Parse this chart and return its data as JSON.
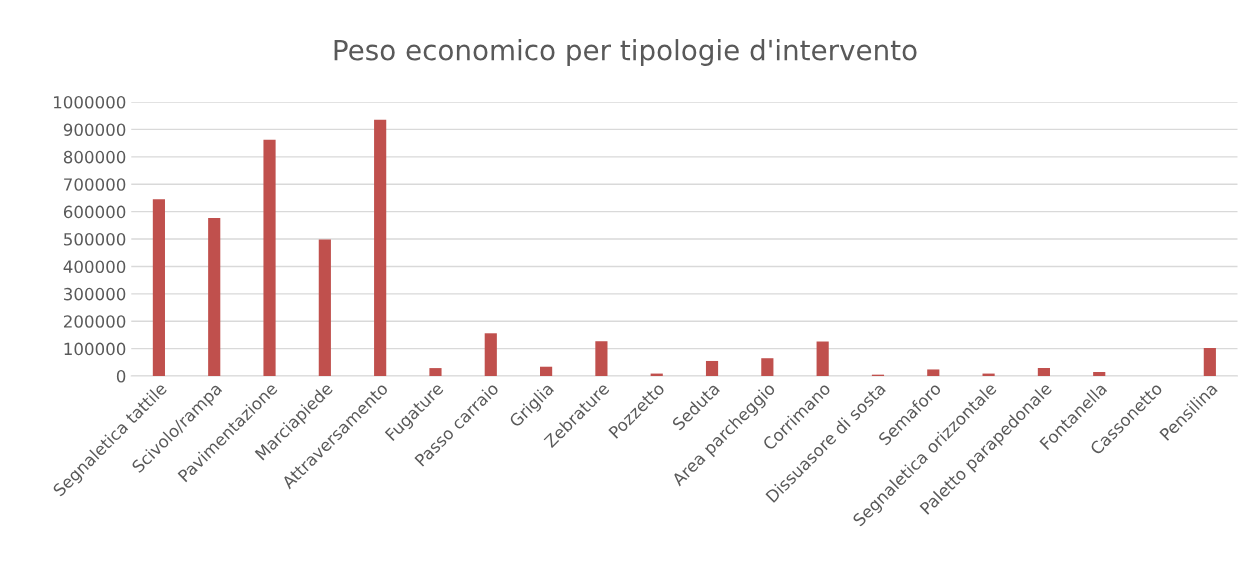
{
  "chart_data": {
    "type": "bar",
    "title": "Peso economico per tipologie d'intervento",
    "categories": [
      "Segnaletica tattile",
      "Scivolo/rampa",
      "Pavimentazione",
      "Marciapiede",
      "Attraversamento",
      "Fugature",
      "Passo carraio",
      "Griglia",
      "Zebrature",
      "Pozzetto",
      "Seduta",
      "Area parcheggio",
      "Corrimano",
      "Dissuasore di sosta",
      "Semaforo",
      "Segnaletica orizzontale",
      "Paletto parapedonale",
      "Fontanella",
      "Cassonetto",
      "Pensilina"
    ],
    "values": [
      645000,
      577000,
      862000,
      498000,
      935000,
      29000,
      156000,
      34000,
      127000,
      9000,
      55000,
      65000,
      126000,
      5000,
      24000,
      9000,
      29000,
      15000,
      0,
      102000
    ],
    "color": "#c0504d",
    "ylim": [
      0,
      1000000
    ],
    "yticks": [
      0,
      100000,
      200000,
      300000,
      400000,
      500000,
      600000,
      700000,
      800000,
      900000,
      1000000
    ],
    "grid": "y",
    "legend": false
  }
}
